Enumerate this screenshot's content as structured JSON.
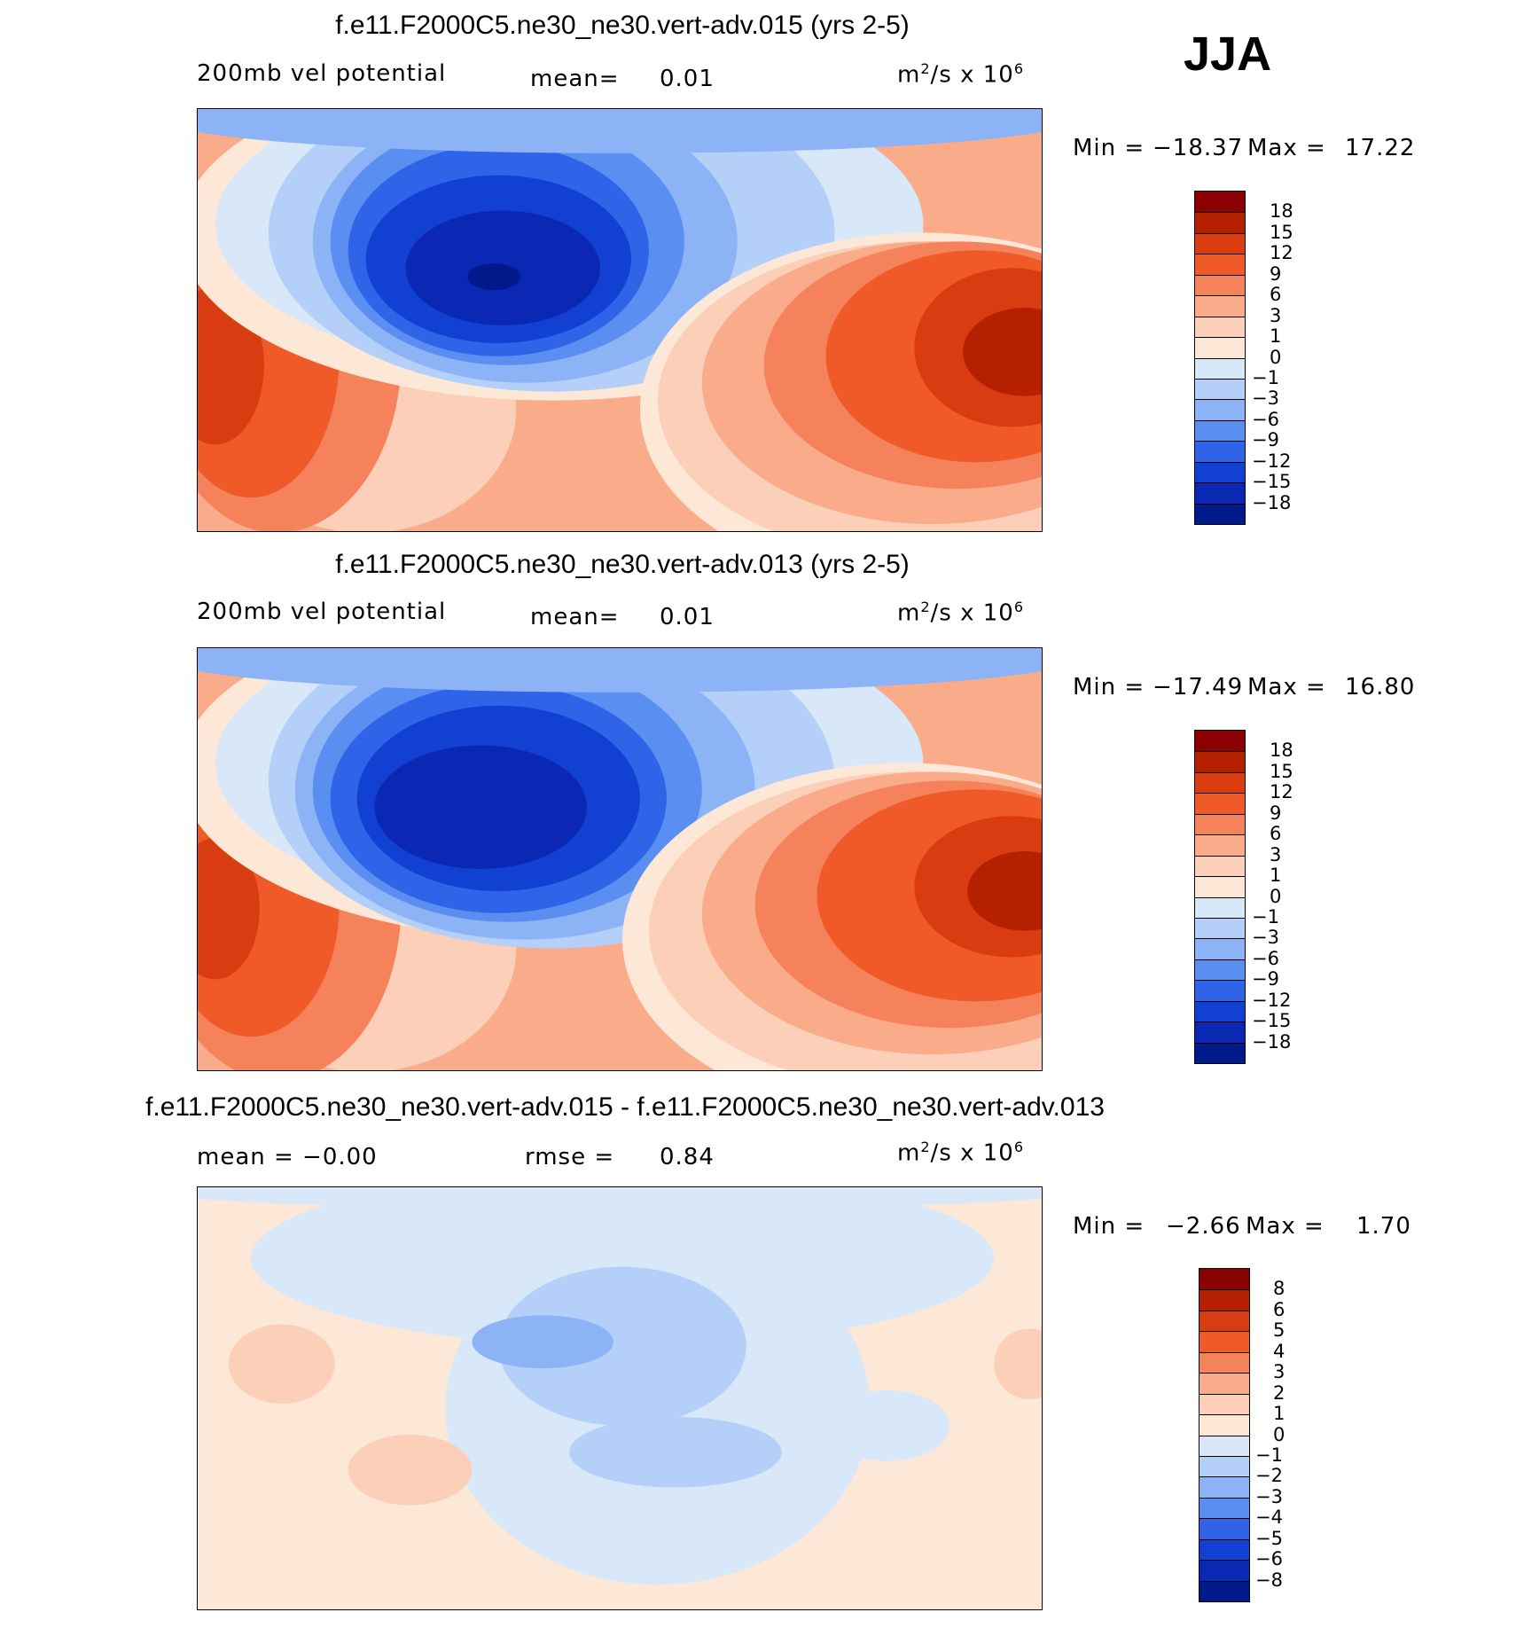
{
  "season": "JJA",
  "panels": [
    {
      "title": "f.e11.F2000C5.ne30_ne30.vert-adv.015 (yrs 2-5)",
      "left_label": "200mb vel potential",
      "mid_label": "mean=",
      "mid_value": "0.01",
      "units_base": "m",
      "units_exp": "2",
      "units_rest": "/s x 10",
      "units_pow": "6",
      "min_label": "Min =",
      "min_value": "−18.37",
      "max_label": "Max =",
      "max_value": "17.22",
      "levels": [
        "18",
        "15",
        "12",
        "9",
        "6",
        "3",
        "1",
        "0",
        "−1",
        "−3",
        "−6",
        "−9",
        "−12",
        "−15",
        "−18"
      ]
    },
    {
      "title": "f.e11.F2000C5.ne30_ne30.vert-adv.013 (yrs 2-5)",
      "left_label": "200mb vel potential",
      "mid_label": "mean=",
      "mid_value": "0.01",
      "units_base": "m",
      "units_exp": "2",
      "units_rest": "/s x 10",
      "units_pow": "6",
      "min_label": "Min =",
      "min_value": "−17.49",
      "max_label": "Max =",
      "max_value": "16.80",
      "levels": [
        "18",
        "15",
        "12",
        "9",
        "6",
        "3",
        "1",
        "0",
        "−1",
        "−3",
        "−6",
        "−9",
        "−12",
        "−15",
        "−18"
      ]
    },
    {
      "title": "f.e11.F2000C5.ne30_ne30.vert-adv.015 - f.e11.F2000C5.ne30_ne30.vert-adv.013",
      "left_label": "mean =  −0.00",
      "mid_label": "rmse =",
      "mid_value": "0.84",
      "units_base": "m",
      "units_exp": "2",
      "units_rest": "/s x 10",
      "units_pow": "6",
      "min_label": "Min =",
      "min_value": "−2.66",
      "max_label": "Max =",
      "max_value": "1.70",
      "levels": [
        "8",
        "6",
        "5",
        "4",
        "3",
        "2",
        "1",
        "0",
        "−1",
        "−2",
        "−3",
        "−4",
        "−5",
        "−6",
        "−8"
      ]
    }
  ],
  "colors": {
    "scale": [
      "#8b0000",
      "#b52000",
      "#d93c10",
      "#f05a28",
      "#f5825a",
      "#f9ab8a",
      "#fccfb8",
      "#fde8d8",
      "#d8e8f9",
      "#b4cff8",
      "#8cb3f6",
      "#5a8ef0",
      "#2f64e8",
      "#1240d2",
      "#0a28b4",
      "#001a8c"
    ]
  }
}
